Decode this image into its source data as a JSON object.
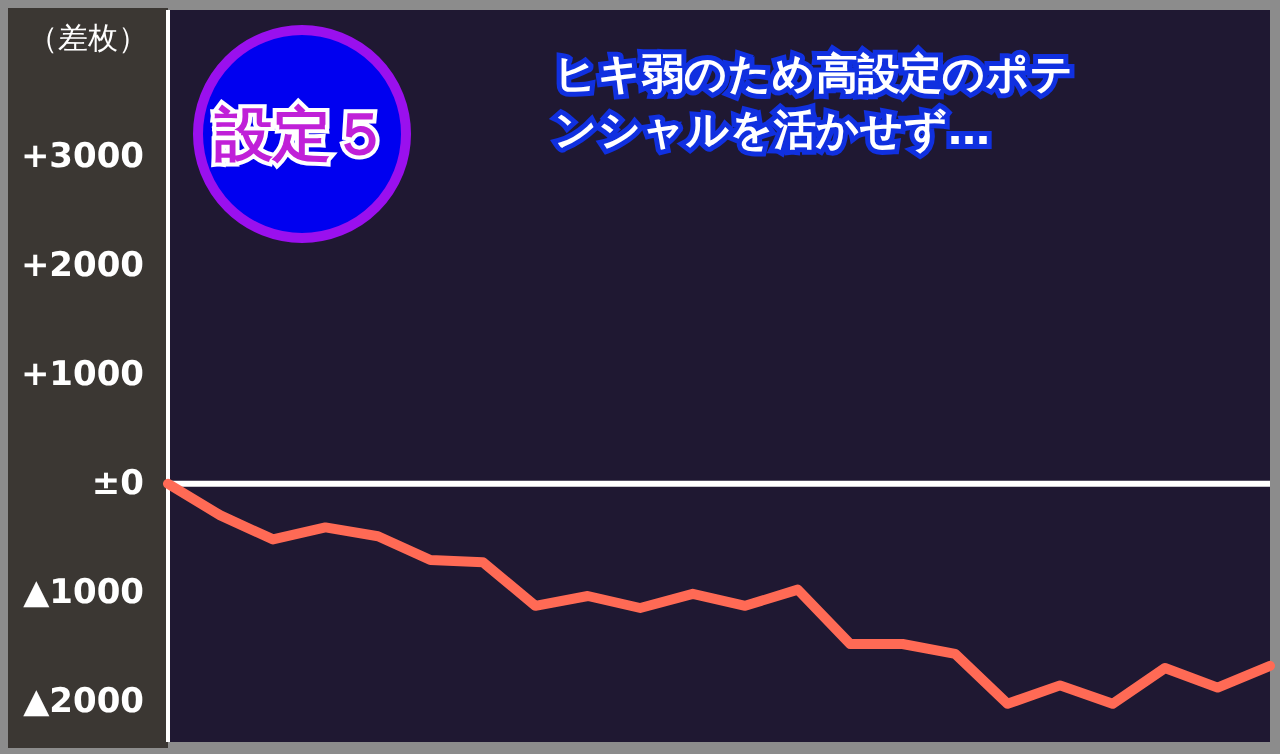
{
  "chart_data": {
    "type": "line",
    "ylabel": "（差枚）",
    "annotations": [
      "設定５",
      "ヒキ弱のため高設定のポテンシャルを活かせず…"
    ],
    "categories": [
      null,
      null,
      null,
      null,
      null,
      null,
      null,
      null,
      null,
      null,
      null,
      null,
      null,
      null,
      null,
      null,
      null,
      null,
      null,
      null,
      null,
      null
    ],
    "series": [
      {
        "color": "#ff6a55",
        "values": [
          0,
          -290,
          -510,
          -400,
          -480,
          -700,
          -720,
          -1120,
          -1030,
          -1140,
          -1010,
          -1120,
          -970,
          -1470,
          -1470,
          -1560,
          -2020,
          -1850,
          -2020,
          -1690,
          -1870,
          -1670
        ]
      }
    ],
    "ylim": [
      -2370,
      4350
    ],
    "yticks": [
      {
        "value": 3000,
        "label": "+3000"
      },
      {
        "value": 2000,
        "label": "+2000"
      },
      {
        "value": 1000,
        "label": "+1000"
      },
      {
        "value": 0,
        "label": "±0"
      },
      {
        "value": -1000,
        "label": "▲1000"
      },
      {
        "value": -2000,
        "label": "▲2000"
      }
    ],
    "ref_lines": [
      {
        "axis": "y",
        "value": 0,
        "color": "#ffffff"
      }
    ],
    "tick_labels": "y",
    "marker": "none",
    "line_style": "solid"
  }
}
